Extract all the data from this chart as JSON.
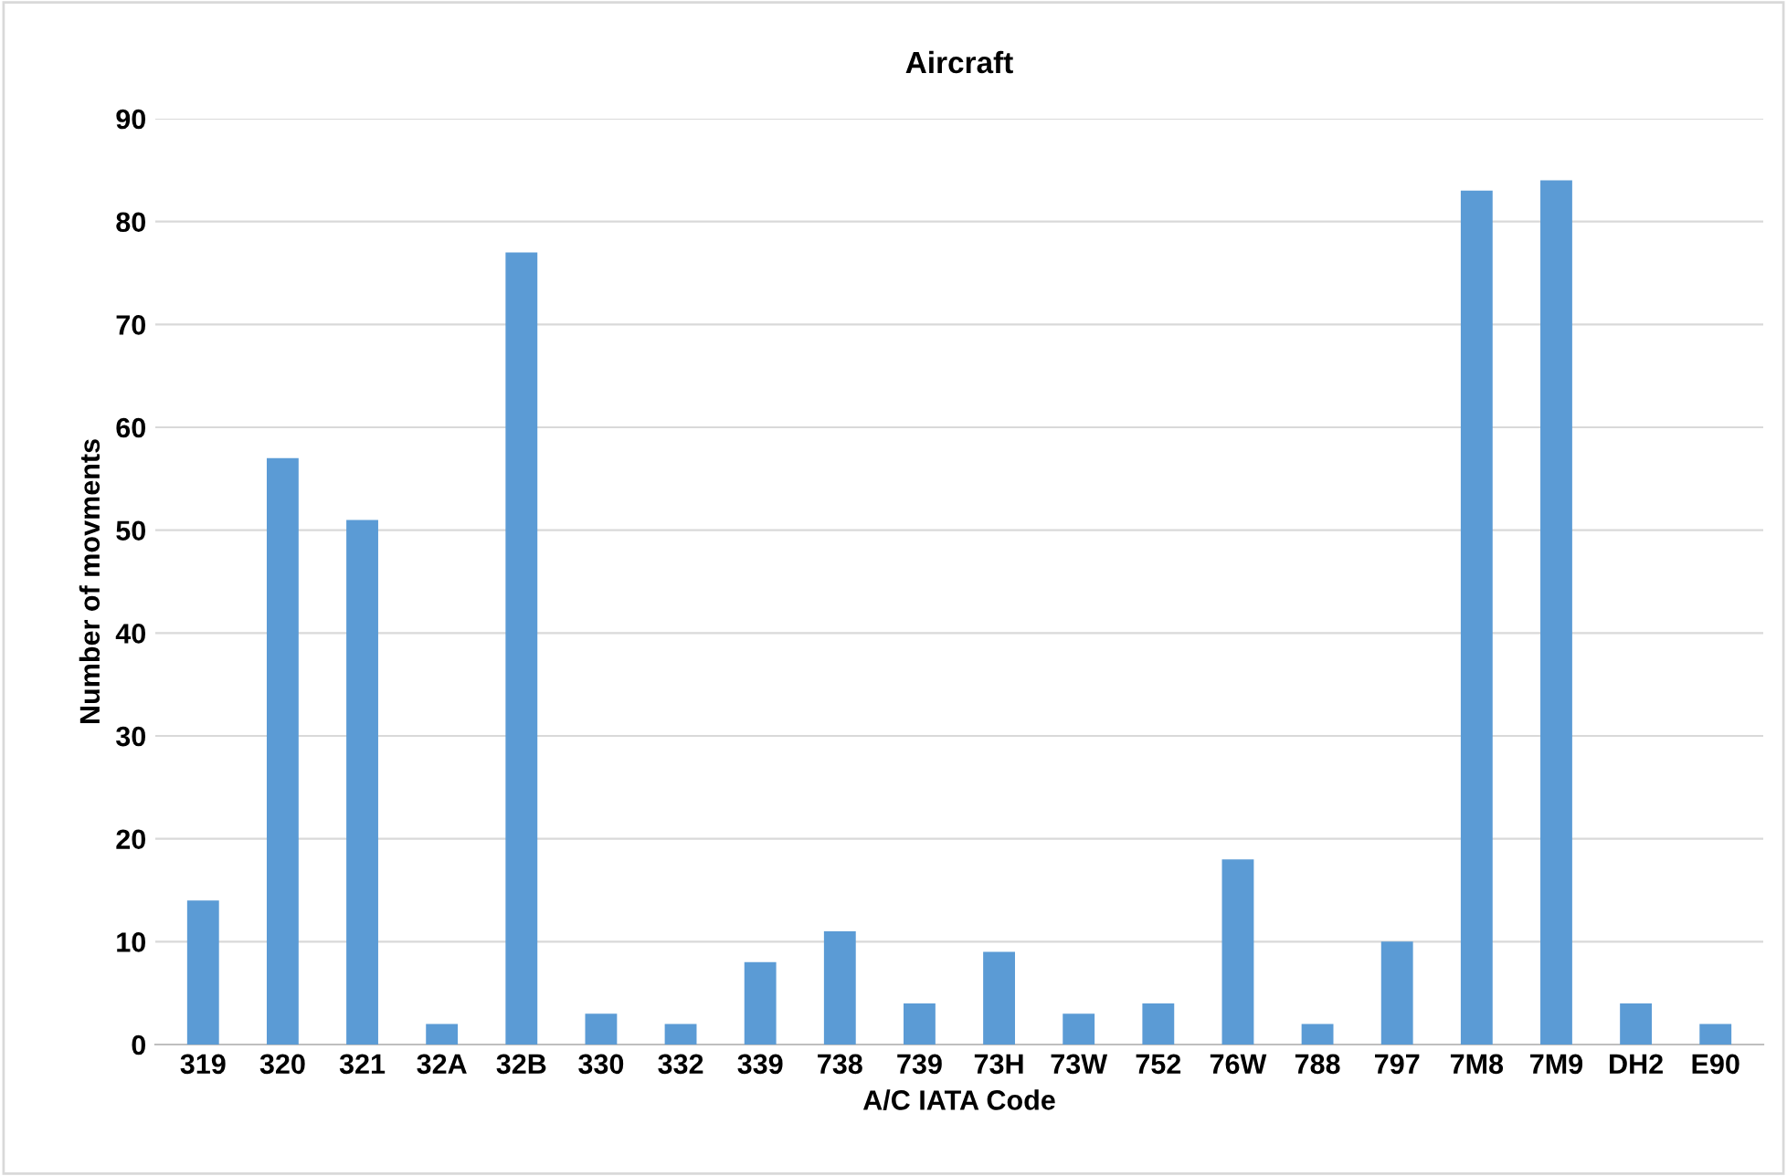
{
  "chart_data": {
    "type": "bar",
    "title": "Aircraft",
    "xlabel": "A/C IATA Code",
    "ylabel": "Number of movments",
    "categories": [
      "319",
      "320",
      "321",
      "32A",
      "32B",
      "330",
      "332",
      "339",
      "738",
      "739",
      "73H",
      "73W",
      "752",
      "76W",
      "788",
      "797",
      "7M8",
      "7M9",
      "DH2",
      "E90"
    ],
    "series": [
      {
        "color": "#5b9bd5",
        "values": [
          14,
          57,
          51,
          2,
          77,
          3,
          2,
          8,
          11,
          4,
          9,
          3,
          4,
          18,
          2,
          10,
          83,
          84,
          4,
          2
        ]
      }
    ],
    "ylim": [
      0,
      90
    ],
    "yticks": [
      0,
      10,
      20,
      30,
      40,
      50,
      60,
      70,
      80,
      90
    ],
    "grid": "y",
    "legend": false
  }
}
